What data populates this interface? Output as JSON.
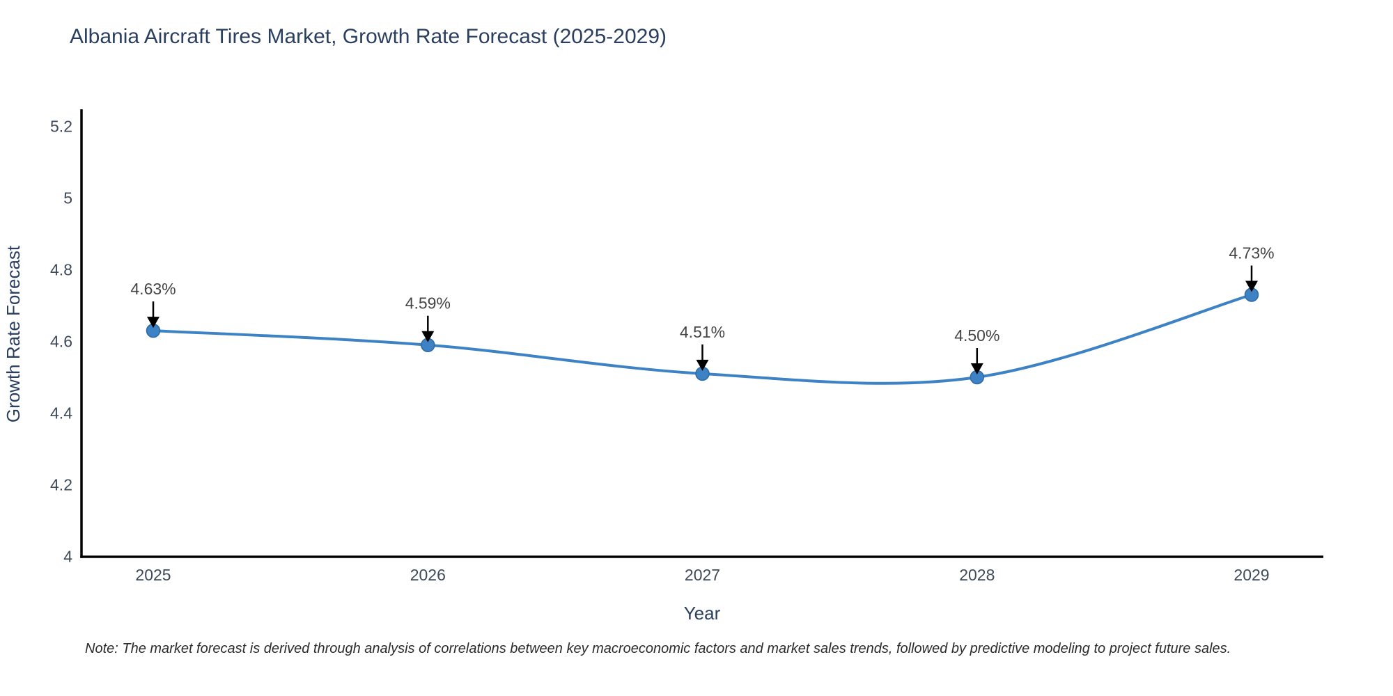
{
  "title": "Albania Aircraft Tires Market, Growth Rate Forecast (2025-2029)",
  "note": "Note: The market forecast is derived through analysis of correlations between key macroeconomic factors and market sales trends, followed by predictive modeling to project future sales.",
  "chart_data": {
    "type": "line",
    "title": "Albania Aircraft Tires Market, Growth Rate Forecast (2025-2029)",
    "xlabel": "Year",
    "ylabel": "Growth Rate Forecast",
    "categories": [
      2025,
      2026,
      2027,
      2028,
      2029
    ],
    "values": [
      4.63,
      4.59,
      4.51,
      4.5,
      4.73
    ],
    "point_labels": [
      "4.63%",
      "4.59%",
      "4.51%",
      "4.50%",
      "4.73%"
    ],
    "xtick_labels": [
      "2025",
      "2026",
      "2027",
      "2028",
      "2029"
    ],
    "ytick_values": [
      4,
      4.2,
      4.4,
      4.6,
      4.8,
      5,
      5.2
    ],
    "ytick_labels": [
      "4",
      "4.2",
      "4.4",
      "4.6",
      "4.8",
      "5",
      "5.2"
    ],
    "xlim": [
      2024.74,
      2029.26
    ],
    "ylim": [
      4.0,
      5.245
    ],
    "grid": false,
    "legend": "none",
    "curve": "spline",
    "line_color": "#3d82c4",
    "marker_color": "#3d82c4",
    "marker_edge_color": "#2d6aa3",
    "axis_color": "#000000",
    "arrow_color": "#000000"
  }
}
